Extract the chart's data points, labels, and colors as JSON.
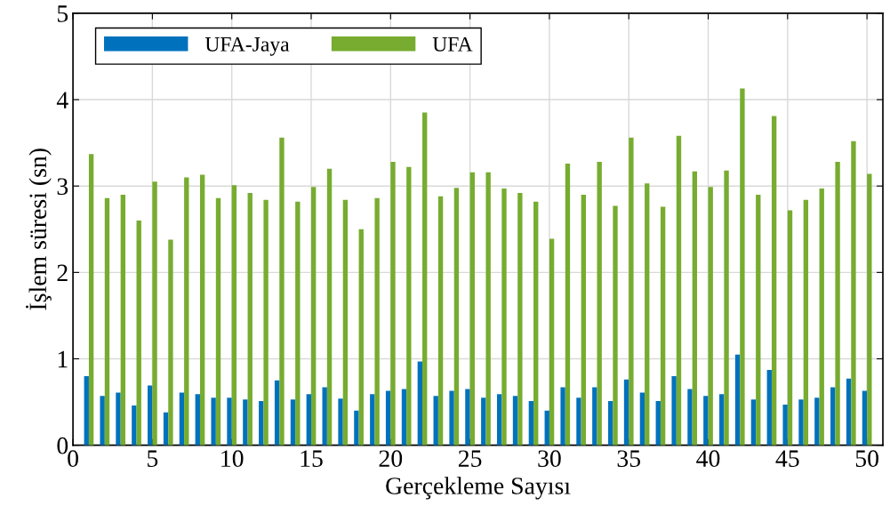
{
  "chart_data": {
    "type": "bar",
    "xlabel": "Gerçekleme Sayısı",
    "ylabel": "İşlem süresi (sn)",
    "x": [
      1,
      2,
      3,
      4,
      5,
      6,
      7,
      8,
      9,
      10,
      11,
      12,
      13,
      14,
      15,
      16,
      17,
      18,
      19,
      20,
      21,
      22,
      23,
      24,
      25,
      26,
      27,
      28,
      29,
      30,
      31,
      32,
      33,
      34,
      35,
      36,
      37,
      38,
      39,
      40,
      41,
      42,
      43,
      44,
      45,
      46,
      47,
      48,
      49,
      50
    ],
    "series": [
      {
        "name": "UFA-Jaya",
        "color": "#0072bd",
        "values": [
          0.8,
          0.57,
          0.61,
          0.46,
          0.69,
          0.38,
          0.61,
          0.59,
          0.55,
          0.55,
          0.53,
          0.51,
          0.75,
          0.53,
          0.59,
          0.67,
          0.54,
          0.4,
          0.59,
          0.63,
          0.65,
          0.97,
          0.57,
          0.63,
          0.65,
          0.55,
          0.59,
          0.57,
          0.51,
          0.4,
          0.67,
          0.55,
          0.67,
          0.51,
          0.76,
          0.61,
          0.51,
          0.8,
          0.65,
          0.57,
          0.59,
          1.05,
          0.53,
          0.87,
          0.47,
          0.53,
          0.55,
          0.67,
          0.77,
          0.63
        ]
      },
      {
        "name": "UFA",
        "color": "#77ac30",
        "values": [
          3.37,
          2.86,
          2.9,
          2.6,
          3.05,
          2.38,
          3.1,
          3.13,
          2.86,
          3.01,
          2.92,
          2.84,
          3.56,
          2.82,
          2.99,
          3.2,
          2.84,
          2.5,
          2.86,
          3.28,
          3.22,
          3.85,
          2.88,
          2.98,
          3.16,
          3.16,
          2.97,
          2.92,
          2.82,
          2.39,
          3.26,
          2.9,
          3.28,
          2.77,
          3.56,
          3.03,
          2.76,
          3.58,
          3.17,
          2.99,
          3.18,
          4.13,
          2.9,
          3.81,
          2.72,
          2.84,
          2.97,
          3.28,
          3.52,
          3.14
        ]
      }
    ],
    "xlim": [
      0,
      51
    ],
    "xticks": [
      0,
      5,
      10,
      15,
      20,
      25,
      30,
      35,
      40,
      45,
      50
    ],
    "ylim": [
      0,
      5
    ],
    "yticks": [
      0,
      1,
      2,
      3,
      4,
      5
    ],
    "grid": true,
    "legend": "top left"
  }
}
